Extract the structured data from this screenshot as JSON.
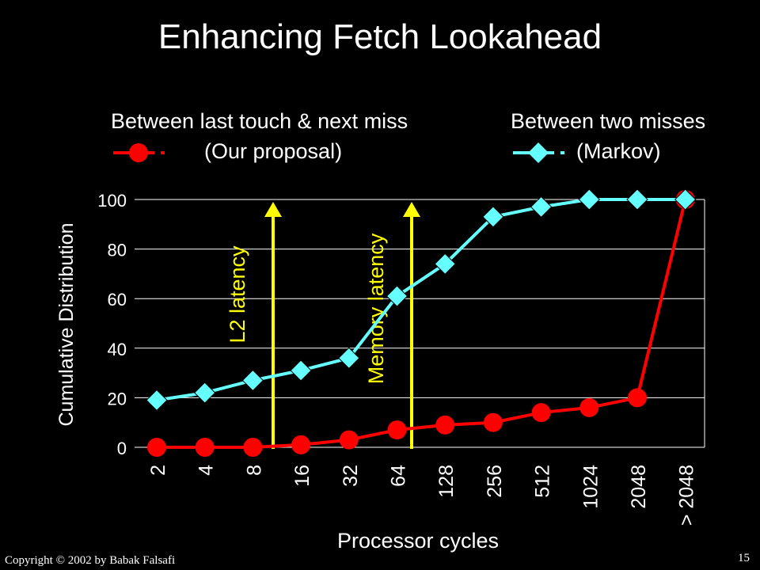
{
  "slide": {
    "title": "Enhancing Fetch Lookahead",
    "copyright": "Copyright © 2002  by Babak Falsafi",
    "page_number": "15"
  },
  "legend": {
    "series1_line1": "Between last touch & next miss",
    "series1_line2": "(Our proposal)",
    "series2_line1": "Between two misses",
    "series2_line2": "(Markov)"
  },
  "annotations": {
    "l2": "L2 latency",
    "memory": "Memory latency"
  },
  "chart_data": {
    "type": "line",
    "title": "",
    "xlabel": "Processor cycles",
    "ylabel": "Cumulative Distribution",
    "categories": [
      "2",
      "4",
      "8",
      "16",
      "32",
      "64",
      "128",
      "256",
      "512",
      "1024",
      "2048",
      "> 2048"
    ],
    "ylim": [
      0,
      100
    ],
    "yticks": [
      "0",
      "20",
      "40",
      "60",
      "80",
      "100"
    ],
    "grid": true,
    "series": [
      {
        "name": "Between last touch & next miss (Our proposal)",
        "color": "#ff0000",
        "marker": "circle",
        "values": [
          0,
          0,
          0,
          1,
          3,
          7,
          9,
          10,
          14,
          16,
          20,
          100
        ]
      },
      {
        "name": "Between two misses (Markov)",
        "color": "#66ffff",
        "marker": "diamond",
        "values": [
          19,
          22,
          27,
          31,
          36,
          61,
          74,
          93,
          97,
          100,
          100,
          100
        ]
      }
    ],
    "markers": [
      {
        "label": "L2 latency",
        "position": "between 8 and 16",
        "color": "#ffff00"
      },
      {
        "label": "Memory latency",
        "position": "between 64 and 128",
        "color": "#ffff00"
      }
    ]
  }
}
